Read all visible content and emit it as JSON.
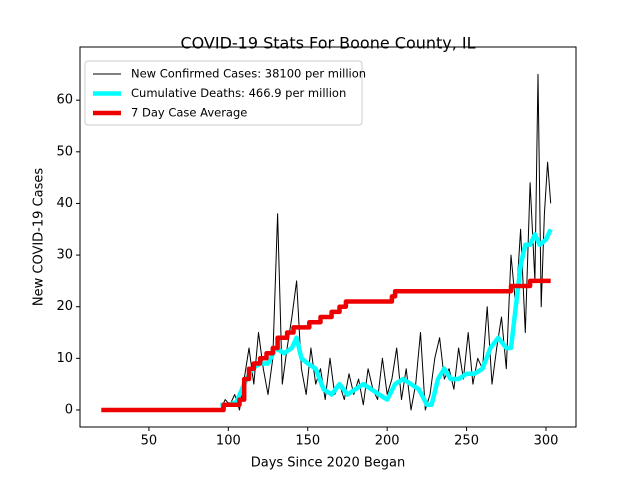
{
  "chart_data": {
    "type": "line",
    "title": "COVID-19 Stats For Boone County, IL",
    "x_label": "Days Since 2020 Began",
    "y_label": "New COVID-19 Cases",
    "xlim": [
      6.6,
      318.9
    ],
    "ylim": [
      -3.3,
      70.3
    ],
    "xticks": [
      50,
      100,
      150,
      200,
      250,
      300
    ],
    "yticks": [
      0,
      10,
      20,
      30,
      40,
      50,
      60
    ],
    "legend": "upper left",
    "series": [
      {
        "name": "New Confirmed Cases: 38100 per million",
        "color": "#000000",
        "x": [
          95,
          98,
          101,
          104,
          107,
          110,
          113,
          116,
          119,
          122,
          125,
          128,
          131,
          134,
          137,
          140,
          143,
          146,
          149,
          152,
          155,
          158,
          161,
          164,
          167,
          170,
          173,
          176,
          179,
          182,
          185,
          188,
          191,
          194,
          197,
          200,
          203,
          206,
          209,
          212,
          215,
          218,
          221,
          224,
          227,
          230,
          233,
          236,
          239,
          242,
          245,
          248,
          251,
          254,
          257,
          260,
          263,
          266,
          269,
          272,
          275,
          278,
          281,
          284,
          287,
          290,
          293,
          295,
          297,
          299,
          301,
          303
        ],
        "values": [
          0,
          2,
          1,
          3,
          0,
          6,
          12,
          5,
          15,
          8,
          3,
          10,
          38,
          5,
          12,
          18,
          25,
          8,
          3,
          12,
          5,
          8,
          2,
          10,
          3,
          5,
          2,
          7,
          3,
          6,
          1,
          8,
          4,
          2,
          10,
          3,
          6,
          12,
          2,
          8,
          0,
          5,
          15,
          0,
          3,
          10,
          14,
          6,
          8,
          4,
          12,
          6,
          15,
          5,
          10,
          8,
          20,
          5,
          12,
          18,
          8,
          30,
          20,
          35,
          15,
          44,
          25,
          65,
          20,
          38,
          48,
          40
        ]
      },
      {
        "name": "Cumulative Deaths: 466.9 per million",
        "color": "#00ffff",
        "x": [
          95,
          100,
          105,
          110,
          115,
          120,
          125,
          130,
          135,
          140,
          143,
          146,
          150,
          155,
          160,
          165,
          170,
          175,
          180,
          185,
          190,
          195,
          200,
          205,
          210,
          215,
          220,
          225,
          228,
          232,
          236,
          240,
          245,
          250,
          255,
          260,
          265,
          270,
          275,
          278,
          281,
          284,
          287,
          290,
          293,
          296,
          300,
          303
        ],
        "values": [
          1,
          1,
          1.5,
          5,
          8,
          9,
          9,
          12,
          11,
          12,
          14,
          10,
          9,
          8,
          4,
          3,
          5,
          3,
          4,
          5,
          4,
          3,
          2,
          5,
          6,
          5,
          4,
          1,
          1,
          6,
          8,
          6,
          6,
          7,
          7,
          8,
          12,
          14,
          12,
          12,
          20,
          28,
          32,
          32,
          34,
          32,
          33,
          35
        ]
      },
      {
        "name": "7 Day Case Average",
        "color": "#ee0000",
        "x": [
          20,
          97,
          97,
          107,
          107,
          110,
          110,
          113,
          113,
          116,
          116,
          120,
          120,
          124,
          124,
          128,
          128,
          131,
          131,
          137,
          137,
          141,
          141,
          151,
          151,
          158,
          158,
          165,
          165,
          170,
          170,
          174,
          174,
          203,
          203,
          205,
          205,
          278,
          278,
          290,
          290,
          303
        ],
        "values": [
          0,
          0,
          1,
          1,
          2,
          2,
          6,
          6,
          8,
          8,
          9,
          9,
          10,
          10,
          11,
          11,
          12,
          12,
          14,
          14,
          15,
          15,
          16,
          16,
          17,
          17,
          18,
          18,
          19,
          19,
          20,
          20,
          21,
          21,
          22,
          22,
          23,
          23,
          24,
          24,
          25,
          25
        ]
      }
    ]
  }
}
